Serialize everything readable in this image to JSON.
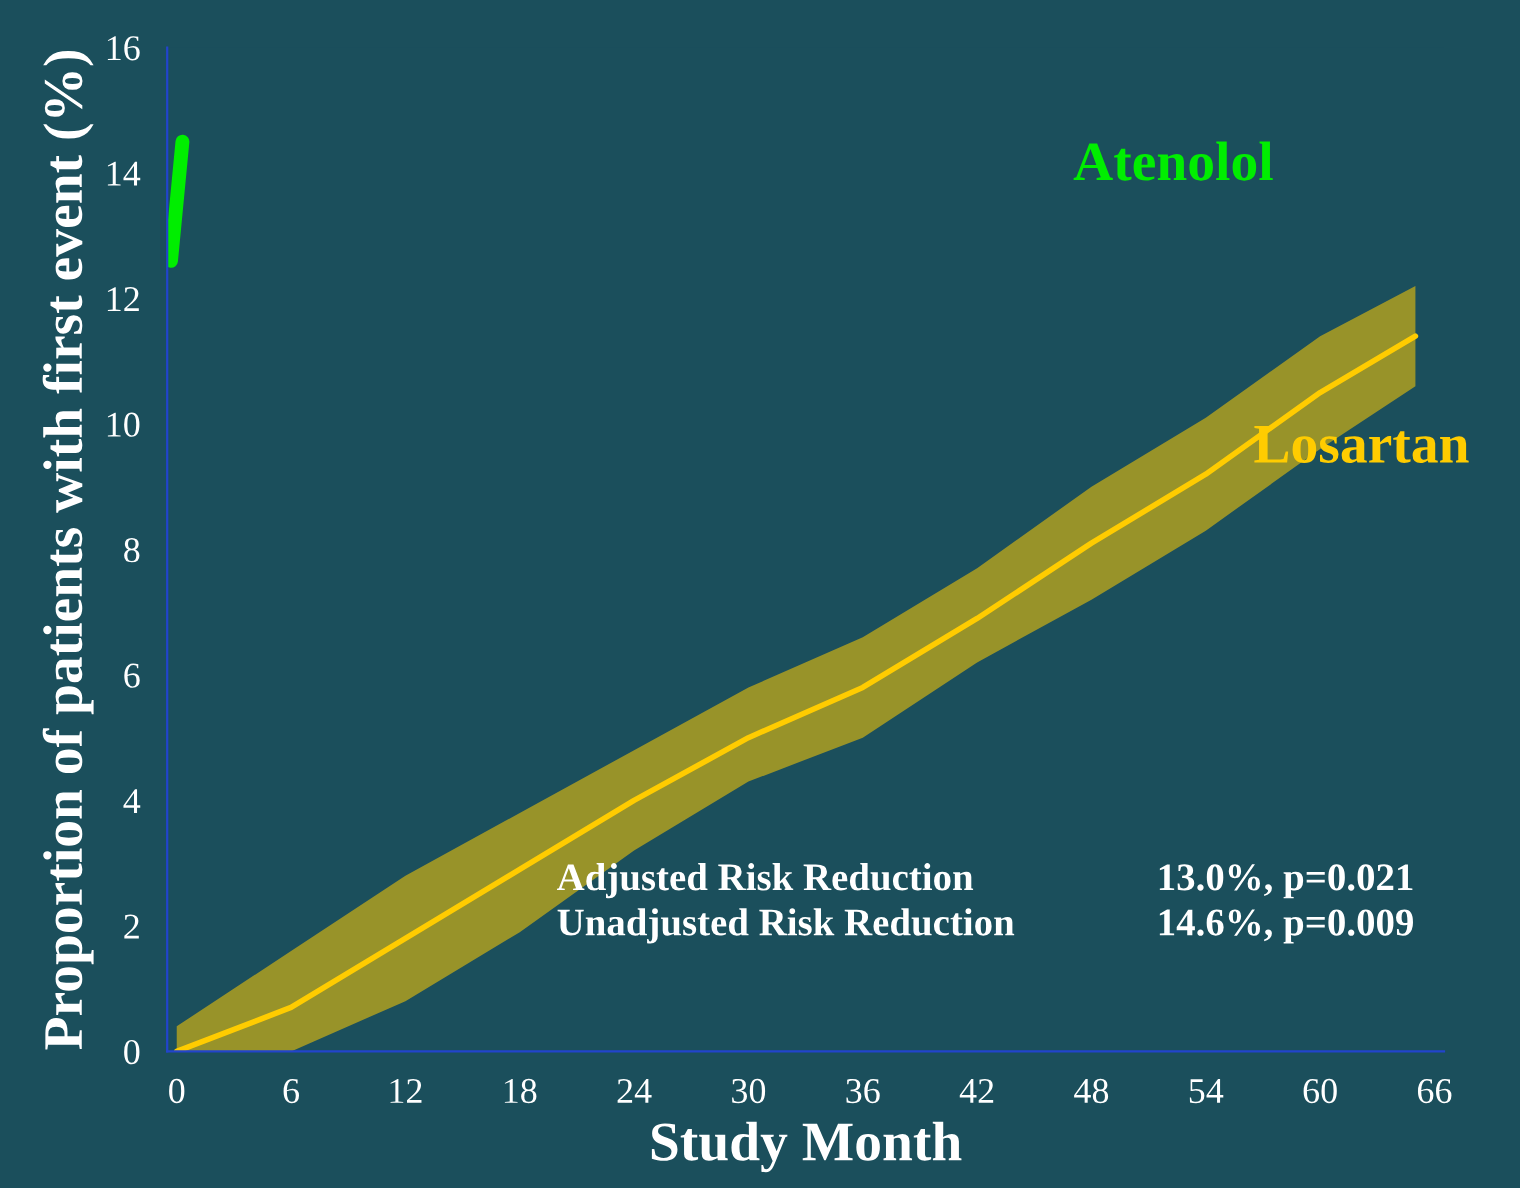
{
  "chart_data": {
    "type": "line",
    "xlabel": "Study Month",
    "ylabel": "Proportion of patients with first event (%)",
    "xlim": [
      -0.5,
      66.5
    ],
    "xticks": [
      0,
      6,
      12,
      18,
      24,
      30,
      36,
      42,
      48,
      54,
      60,
      66
    ],
    "ylim": [
      0,
      16
    ],
    "yticks": [
      0,
      2,
      4,
      6,
      8,
      10,
      12,
      14,
      16
    ],
    "grid": false,
    "legend": false,
    "marker": "none",
    "line_style": "solid",
    "series": [
      {
        "name": "Atenolol",
        "color": "#00ee00",
        "x": [
          -0.3,
          0.3
        ],
        "values": [
          12.6,
          14.5
        ]
      },
      {
        "name": "Losartan",
        "color": "#ffcc00",
        "x": [
          0,
          6,
          12,
          18,
          24,
          30,
          36,
          42,
          48,
          54,
          60,
          65
        ],
        "values": [
          0,
          0.7,
          1.8,
          2.9,
          4.0,
          5.0,
          5.8,
          6.9,
          8.1,
          9.2,
          10.5,
          11.4
        ],
        "lower": [
          0,
          0,
          0.8,
          1.9,
          3.2,
          4.3,
          5.0,
          6.2,
          7.2,
          8.3,
          9.6,
          10.6
        ],
        "upper": [
          0.4,
          1.6,
          2.8,
          3.8,
          4.8,
          5.8,
          6.6,
          7.7,
          9.0,
          10.1,
          11.4,
          12.2
        ]
      }
    ],
    "annotations": [
      "Adjusted Risk Reduction",
      "13.0%, p=0.021",
      "Unadjusted Risk Reduction",
      "14.6%, p=0.009"
    ]
  }
}
